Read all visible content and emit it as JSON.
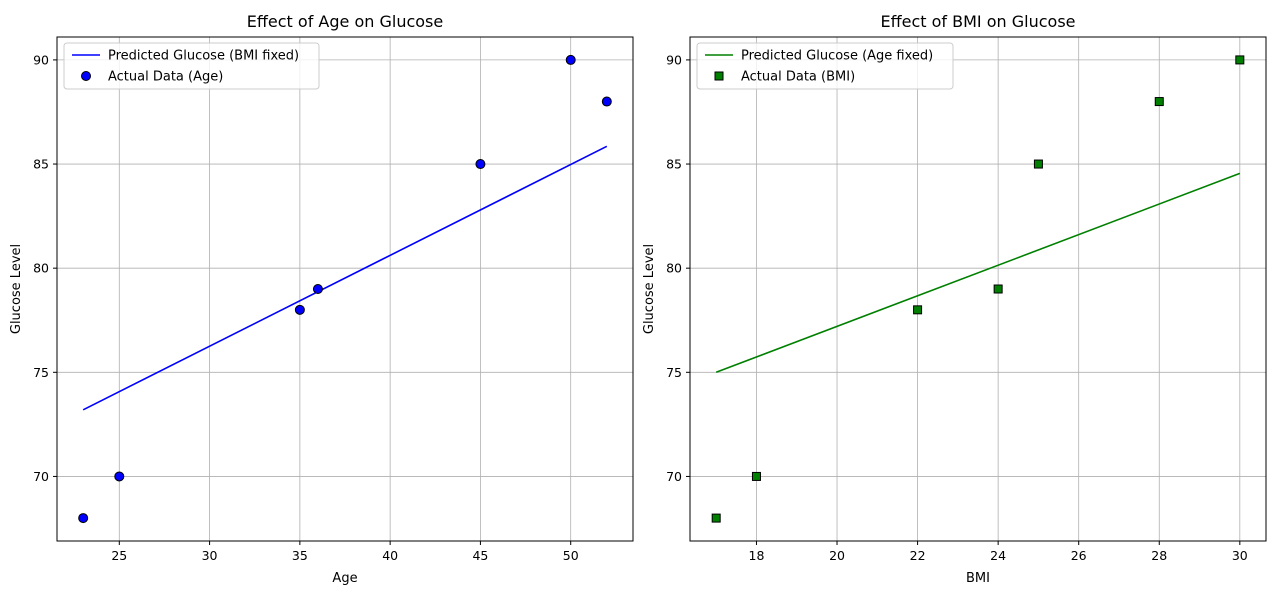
{
  "figure": {
    "background": "#ffffff"
  },
  "chart_data": [
    {
      "type": "scatter",
      "title": "Effect of Age on Glucose",
      "xlabel": "Age",
      "ylabel": "Glucose Level",
      "xlim": [
        21.55,
        53.45
      ],
      "ylim": [
        66.9,
        91.1
      ],
      "xticks": [
        25,
        30,
        35,
        40,
        45,
        50
      ],
      "yticks": [
        70,
        75,
        80,
        85,
        90
      ],
      "grid": true,
      "legend_position": "top-left",
      "series": [
        {
          "name": "Predicted Glucose (BMI fixed)",
          "kind": "line",
          "color": "#0000ff",
          "x": [
            23,
            52
          ],
          "y": [
            73.2,
            85.85
          ]
        },
        {
          "name": "Actual Data (Age)",
          "kind": "scatter",
          "marker": "circle",
          "color": "#0000ff",
          "edgecolor": "#000000",
          "x": [
            23,
            25,
            35,
            36,
            45,
            50,
            52
          ],
          "y": [
            68,
            70,
            78,
            79,
            85,
            90,
            88
          ]
        }
      ]
    },
    {
      "type": "scatter",
      "title": "Effect of BMI on Glucose",
      "xlabel": "BMI",
      "ylabel": "Glucose Level",
      "xlim": [
        16.35,
        30.65
      ],
      "ylim": [
        66.9,
        91.1
      ],
      "xticks": [
        18,
        20,
        22,
        24,
        26,
        28,
        30
      ],
      "yticks": [
        70,
        75,
        80,
        85,
        90
      ],
      "grid": true,
      "legend_position": "top-left",
      "series": [
        {
          "name": "Predicted Glucose (Age fixed)",
          "kind": "line",
          "color": "#008000",
          "x": [
            17,
            30
          ],
          "y": [
            75.0,
            84.55
          ]
        },
        {
          "name": "Actual Data (BMI)",
          "kind": "scatter",
          "marker": "square",
          "color": "#008000",
          "edgecolor": "#000000",
          "x": [
            17,
            18,
            22,
            24,
            25,
            28,
            30
          ],
          "y": [
            68,
            70,
            78,
            79,
            85,
            88,
            90
          ]
        }
      ]
    }
  ]
}
